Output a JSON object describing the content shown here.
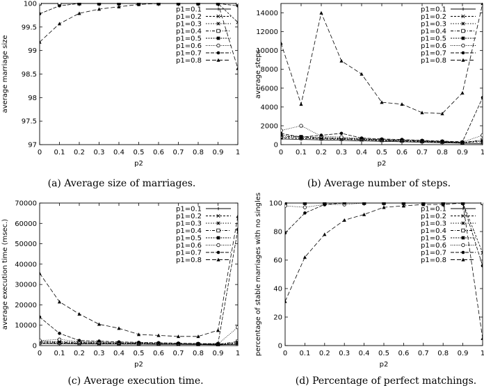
{
  "chart_data": [
    {
      "type": "line",
      "caption": "(a) Average size of marriages.",
      "xlabel": "p2",
      "ylabel": "average marriage size",
      "x": [
        0,
        0.1,
        0.2,
        0.3,
        0.4,
        0.5,
        0.6,
        0.7,
        0.8,
        0.9,
        1
      ],
      "xticks": [
        "0",
        "0.1",
        "0.2",
        "0.3",
        "0.4",
        "0.5",
        "0.6",
        "0.7",
        "0.8",
        "0.9",
        "1"
      ],
      "xlim": [
        0,
        1
      ],
      "ylim": [
        97,
        100
      ],
      "yticks": [
        "97",
        "97.5",
        "98",
        "98.5",
        "99",
        "99.5",
        "100"
      ],
      "ytick_values": [
        97,
        97.5,
        98,
        98.5,
        99,
        99.5,
        100
      ],
      "legend_position": "top-right",
      "series": [
        {
          "name": "p1=0.1",
          "values": [
            100,
            100,
            100,
            100,
            100,
            100,
            100,
            100,
            100,
            100,
            100
          ]
        },
        {
          "name": "p1=0.2",
          "values": [
            100,
            100,
            100,
            100,
            100,
            100,
            100,
            100,
            100,
            100,
            99.6
          ]
        },
        {
          "name": "p1=0.3",
          "values": [
            100,
            100,
            100,
            100,
            100,
            100,
            100,
            100,
            100,
            100,
            100
          ]
        },
        {
          "name": "p1=0.4",
          "values": [
            100,
            100,
            100,
            100,
            100,
            100,
            100,
            100,
            100,
            100,
            100
          ]
        },
        {
          "name": "p1=0.5",
          "values": [
            100,
            100,
            100,
            100,
            100,
            100,
            100,
            100,
            100,
            100,
            100
          ]
        },
        {
          "name": "p1=0.6",
          "values": [
            100,
            100,
            100,
            100,
            100,
            100,
            100,
            100,
            100,
            100,
            100
          ]
        },
        {
          "name": "p1=0.7",
          "values": [
            99.78,
            99.95,
            100,
            100,
            100,
            100,
            100,
            100,
            100,
            100,
            99.95
          ]
        },
        {
          "name": "p1=0.8",
          "values": [
            99.18,
            99.57,
            99.79,
            99.88,
            99.93,
            99.98,
            100,
            100,
            100,
            100,
            98.62
          ]
        }
      ]
    },
    {
      "type": "line",
      "caption": "(b) Average number of steps.",
      "xlabel": "p2",
      "ylabel": "average steps",
      "x": [
        0,
        0.1,
        0.2,
        0.3,
        0.4,
        0.5,
        0.6,
        0.7,
        0.8,
        0.9,
        1
      ],
      "xticks": [
        "0",
        "0.1",
        "0.2",
        "0.3",
        "0.4",
        "0.5",
        "0.6",
        "0.7",
        "0.8",
        "0.9",
        "1"
      ],
      "xlim": [
        0,
        1
      ],
      "ylim": [
        0,
        15000
      ],
      "yticks": [
        "0",
        "2000",
        "4000",
        "6000",
        "8000",
        "10000",
        "12000",
        "14000"
      ],
      "ytick_values": [
        0,
        2000,
        4000,
        6000,
        8000,
        10000,
        12000,
        14000
      ],
      "legend_position": "top-right",
      "series": [
        {
          "name": "p1=0.1",
          "values": [
            600,
            550,
            500,
            450,
            400,
            350,
            300,
            250,
            200,
            150,
            100
          ]
        },
        {
          "name": "p1=0.2",
          "values": [
            700,
            650,
            600,
            560,
            500,
            430,
            380,
            320,
            260,
            200,
            300
          ]
        },
        {
          "name": "p1=0.3",
          "values": [
            800,
            700,
            650,
            600,
            520,
            460,
            400,
            340,
            280,
            200,
            400
          ]
        },
        {
          "name": "p1=0.4",
          "values": [
            900,
            800,
            700,
            650,
            560,
            490,
            420,
            360,
            300,
            220,
            500
          ]
        },
        {
          "name": "p1=0.5",
          "values": [
            1000,
            850,
            750,
            700,
            600,
            520,
            450,
            380,
            320,
            240,
            400
          ]
        },
        {
          "name": "p1=0.6",
          "values": [
            1500,
            2000,
            900,
            800,
            650,
            550,
            500,
            420,
            350,
            260,
            1000
          ]
        },
        {
          "name": "p1=0.7",
          "values": [
            1200,
            800,
            1000,
            1200,
            700,
            600,
            550,
            450,
            380,
            300,
            5000
          ]
        },
        {
          "name": "p1=0.8",
          "values": [
            10800,
            4300,
            14000,
            8900,
            7500,
            4500,
            4300,
            3400,
            3300,
            5500,
            15000
          ]
        }
      ]
    },
    {
      "type": "line",
      "caption": "(c) Average execution time.",
      "xlabel": "p2",
      "ylabel": "average execution time (msec.)",
      "x": [
        0,
        0.1,
        0.2,
        0.3,
        0.4,
        0.5,
        0.6,
        0.7,
        0.8,
        0.9,
        1
      ],
      "xticks": [
        "0",
        "0.1",
        "0.2",
        "0.3",
        "0.4",
        "0.5",
        "0.6",
        "0.7",
        "0.8",
        "0.9",
        "1"
      ],
      "xlim": [
        0,
        1
      ],
      "ylim": [
        0,
        70000
      ],
      "yticks": [
        "0",
        "10000",
        "20000",
        "30000",
        "40000",
        "50000",
        "60000",
        "70000"
      ],
      "ytick_values": [
        0,
        10000,
        20000,
        30000,
        40000,
        50000,
        60000,
        70000
      ],
      "legend_position": "top-right",
      "series": [
        {
          "name": "p1=0.1",
          "values": [
            1000,
            900,
            800,
            800,
            700,
            700,
            600,
            600,
            500,
            400,
            600
          ]
        },
        {
          "name": "p1=0.2",
          "values": [
            1200,
            1100,
            1000,
            900,
            800,
            800,
            700,
            600,
            600,
            500,
            1000
          ]
        },
        {
          "name": "p1=0.3",
          "values": [
            1500,
            1300,
            1200,
            1100,
            1000,
            900,
            800,
            700,
            600,
            500,
            1500
          ]
        },
        {
          "name": "p1=0.4",
          "values": [
            1800,
            1600,
            1400,
            1300,
            1200,
            1000,
            900,
            800,
            700,
            600,
            2000
          ]
        },
        {
          "name": "p1=0.5",
          "values": [
            2200,
            1900,
            1700,
            1500,
            1300,
            1200,
            1000,
            900,
            800,
            700,
            1500
          ]
        },
        {
          "name": "p1=0.6",
          "values": [
            2500,
            3000,
            2000,
            1800,
            1500,
            1400,
            1200,
            1000,
            900,
            800,
            9000
          ]
        },
        {
          "name": "p1=0.7",
          "values": [
            14000,
            6000,
            2500,
            2200,
            1800,
            1600,
            1400,
            1200,
            1000,
            1000,
            57000
          ]
        },
        {
          "name": "p1=0.8",
          "values": [
            35500,
            21500,
            15500,
            10500,
            8500,
            5500,
            5000,
            4500,
            4500,
            7500,
            63500
          ]
        }
      ]
    },
    {
      "type": "line",
      "caption": "(d) Percentage of perfect matchings.",
      "xlabel": "p2",
      "ylabel": "percentage of stable marriages with no singles",
      "x": [
        0,
        0.1,
        0.2,
        0.3,
        0.4,
        0.5,
        0.6,
        0.7,
        0.8,
        0.9,
        1
      ],
      "xticks": [
        "0",
        "0.1",
        "0.2",
        "0.3",
        "0.4",
        "0.5",
        "0.6",
        "0.7",
        "0.8",
        "0.9",
        "1"
      ],
      "xlim": [
        0,
        1
      ],
      "ylim": [
        0,
        100
      ],
      "yticks": [
        "0",
        "20",
        "40",
        "60",
        "80",
        "100"
      ],
      "ytick_values": [
        0,
        20,
        40,
        60,
        80,
        100
      ],
      "legend_position": "top-right",
      "series": [
        {
          "name": "p1=0.1",
          "values": [
            100,
            100,
            100,
            100,
            100,
            100,
            100,
            100,
            100,
            100,
            100
          ]
        },
        {
          "name": "p1=0.2",
          "values": [
            100,
            100,
            100,
            100,
            100,
            100,
            100,
            100,
            100,
            100,
            65
          ]
        },
        {
          "name": "p1=0.3",
          "values": [
            100,
            100,
            100,
            100,
            100,
            100,
            100,
            100,
            100,
            100,
            100
          ]
        },
        {
          "name": "p1=0.4",
          "values": [
            100,
            100,
            100,
            100,
            100,
            100,
            100,
            100,
            100,
            100,
            100
          ]
        },
        {
          "name": "p1=0.5",
          "values": [
            100,
            100,
            100,
            100,
            100,
            100,
            100,
            100,
            100,
            100,
            100
          ]
        },
        {
          "name": "p1=0.6",
          "values": [
            98,
            97,
            99,
            99,
            100,
            100,
            100,
            100,
            100,
            100,
            100
          ]
        },
        {
          "name": "p1=0.7",
          "values": [
            79,
            93,
            99,
            100,
            100,
            100,
            100,
            100,
            100,
            100,
            56
          ]
        },
        {
          "name": "p1=0.8",
          "values": [
            31,
            62,
            78,
            88,
            92,
            97,
            98,
            99,
            99,
            100,
            5
          ]
        }
      ]
    }
  ]
}
